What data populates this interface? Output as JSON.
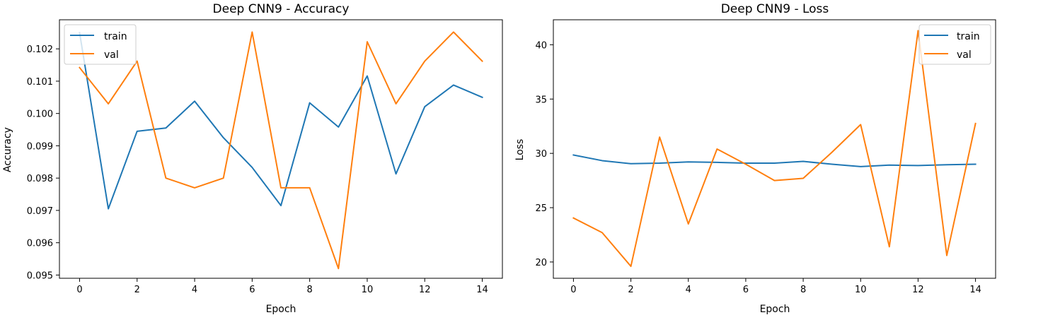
{
  "chart_data": [
    {
      "type": "line",
      "title": "Deep CNN9 - Accuracy",
      "xlabel": "Epoch",
      "ylabel": "Accuracy",
      "xlim": [
        -0.7,
        14.7
      ],
      "ylim": [
        0.0949,
        0.1029
      ],
      "xticks": [
        0,
        2,
        4,
        6,
        8,
        10,
        12,
        14
      ],
      "xtick_labels": [
        "0",
        "2",
        "4",
        "6",
        "8",
        "10",
        "12",
        "14"
      ],
      "yticks": [
        0.095,
        0.096,
        0.097,
        0.098,
        0.099,
        0.1,
        0.101,
        0.102
      ],
      "ytick_labels": [
        "0.095",
        "0.096",
        "0.097",
        "0.098",
        "0.099",
        "0.100",
        "0.101",
        "0.102"
      ],
      "x": [
        0,
        1,
        2,
        3,
        4,
        5,
        6,
        7,
        8,
        9,
        10,
        11,
        12,
        13,
        14
      ],
      "grid": false,
      "legend": "upper left",
      "series": [
        {
          "name": "train",
          "color": "#1f77b4",
          "values": [
            0.1025,
            0.09705,
            0.09945,
            0.09955,
            0.10038,
            0.09925,
            0.09833,
            0.09715,
            0.10033,
            0.09958,
            0.10116,
            0.09813,
            0.10021,
            0.10088,
            0.1005
          ]
        },
        {
          "name": "val",
          "color": "#ff7f0e",
          "values": [
            0.10142,
            0.1003,
            0.10162,
            0.098,
            0.0977,
            0.098,
            0.10252,
            0.0977,
            0.0977,
            0.0952,
            0.10222,
            0.1003,
            0.10162,
            0.10252,
            0.10162
          ]
        }
      ]
    },
    {
      "type": "line",
      "title": "Deep CNN9 - Loss",
      "xlabel": "Epoch",
      "ylabel": "Loss",
      "xlim": [
        -0.7,
        14.7
      ],
      "ylim": [
        18.5,
        42.3
      ],
      "xticks": [
        0,
        2,
        4,
        6,
        8,
        10,
        12,
        14
      ],
      "xtick_labels": [
        "0",
        "2",
        "4",
        "6",
        "8",
        "10",
        "12",
        "14"
      ],
      "yticks": [
        20,
        25,
        30,
        35,
        40
      ],
      "ytick_labels": [
        "20",
        "25",
        "30",
        "35",
        "40"
      ],
      "x": [
        0,
        1,
        2,
        3,
        4,
        5,
        6,
        7,
        8,
        9,
        10,
        11,
        12,
        13,
        14
      ],
      "grid": false,
      "legend": "upper right",
      "series": [
        {
          "name": "train",
          "color": "#1f77b4",
          "values": [
            29.85,
            29.33,
            29.05,
            29.1,
            29.21,
            29.17,
            29.1,
            29.1,
            29.26,
            29.0,
            28.78,
            28.92,
            28.88,
            28.95,
            29.0
          ]
        },
        {
          "name": "val",
          "color": "#ff7f0e",
          "values": [
            24.05,
            22.7,
            19.6,
            31.5,
            23.5,
            30.4,
            29.0,
            27.5,
            27.7,
            30.1,
            32.65,
            21.4,
            41.3,
            20.6,
            32.75
          ]
        }
      ]
    }
  ]
}
